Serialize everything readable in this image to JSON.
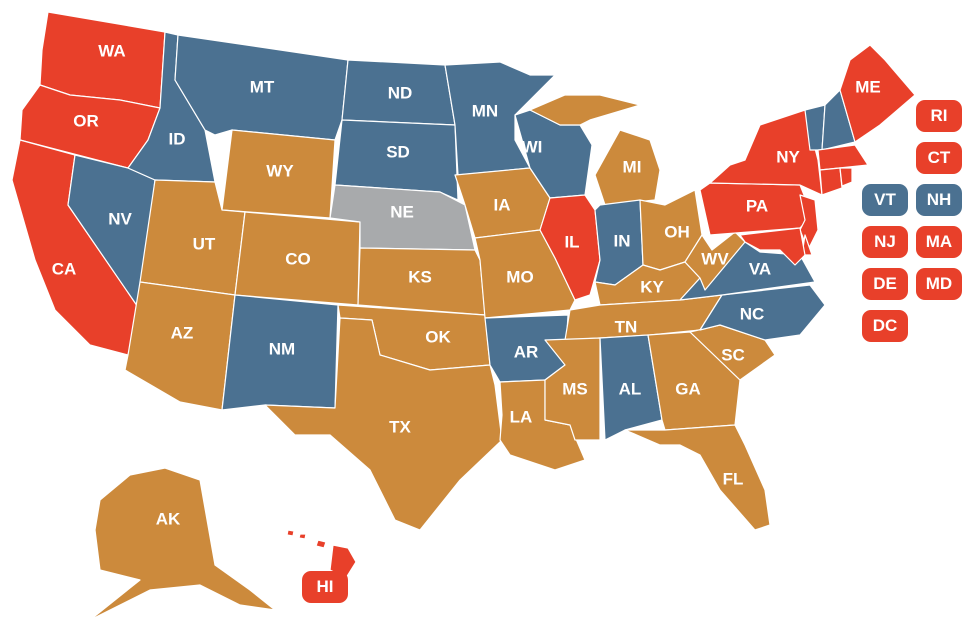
{
  "colors": {
    "red": "#e8402a",
    "blue": "#4b7191",
    "orange": "#cc8a3c",
    "gray": "#a8aaac"
  },
  "states": {
    "WA": "red",
    "OR": "red",
    "CA": "red",
    "NV": "blue",
    "ID": "blue",
    "MT": "blue",
    "WY": "orange",
    "UT": "orange",
    "CO": "orange",
    "AZ": "orange",
    "NM": "blue",
    "ND": "blue",
    "SD": "blue",
    "NE": "gray",
    "KS": "orange",
    "OK": "orange",
    "TX": "orange",
    "MN": "blue",
    "IA": "orange",
    "MO": "orange",
    "AR": "blue",
    "LA": "orange",
    "WI": "blue",
    "IL": "red",
    "MI": "orange",
    "IN": "blue",
    "OH": "orange",
    "KY": "orange",
    "TN": "orange",
    "MS": "orange",
    "AL": "blue",
    "GA": "orange",
    "FL": "orange",
    "SC": "orange",
    "NC": "blue",
    "VA": "blue",
    "WV": "orange",
    "PA": "red",
    "NY": "red",
    "VT": "blue",
    "NH": "blue",
    "ME": "red",
    "MA": "red",
    "CT": "red",
    "RI": "red",
    "NJ": "red",
    "DE": "red",
    "MD": "red",
    "DC": "red",
    "AK": "orange",
    "HI": "red"
  },
  "labels": {
    "WA": "WA",
    "OR": "OR",
    "CA": "CA",
    "NV": "NV",
    "ID": "ID",
    "MT": "MT",
    "WY": "WY",
    "UT": "UT",
    "CO": "CO",
    "AZ": "AZ",
    "NM": "NM",
    "ND": "ND",
    "SD": "SD",
    "NE": "NE",
    "KS": "KS",
    "OK": "OK",
    "TX": "TX",
    "MN": "MN",
    "IA": "IA",
    "MO": "MO",
    "AR": "AR",
    "LA": "LA",
    "WI": "WI",
    "IL": "IL",
    "MI": "MI",
    "IN": "IN",
    "OH": "OH",
    "KY": "KY",
    "TN": "TN",
    "MS": "MS",
    "AL": "AL",
    "GA": "GA",
    "FL": "FL",
    "SC": "SC",
    "NC": "NC",
    "VA": "VA",
    "WV": "WV",
    "PA": "PA",
    "NY": "NY",
    "ME": "ME",
    "AK": "AK",
    "HI": "HI",
    "RI": "RI",
    "CT": "CT",
    "VT": "VT",
    "NH": "NH",
    "NJ": "NJ",
    "MA": "MA",
    "DE": "DE",
    "MD": "MD",
    "DC": "DC"
  }
}
